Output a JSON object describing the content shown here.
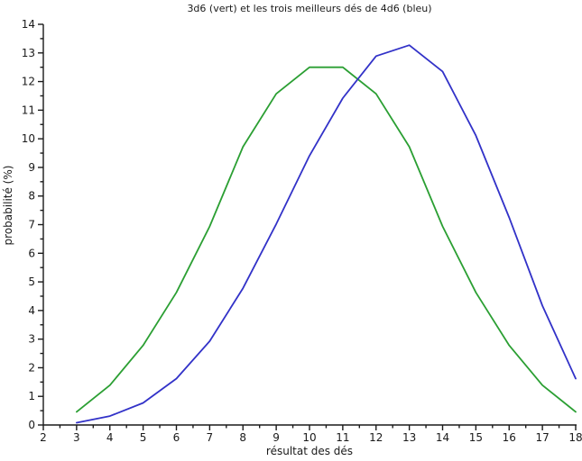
{
  "chart_data": {
    "type": "line",
    "title": "3d6 (vert) et les trois meilleurs dés de 4d6 (bleu)",
    "xlabel": "résultat des dés",
    "ylabel": "probabilité (%)",
    "xlim": [
      2,
      18
    ],
    "ylim": [
      0,
      14
    ],
    "x_ticks": [
      2,
      3,
      4,
      5,
      6,
      7,
      8,
      9,
      10,
      11,
      12,
      13,
      14,
      15,
      16,
      17,
      18
    ],
    "y_ticks": [
      0,
      1,
      2,
      3,
      4,
      5,
      6,
      7,
      8,
      9,
      10,
      11,
      12,
      13,
      14
    ],
    "minor_tick_step": 0.5,
    "grid": false,
    "legend_position": "none",
    "axis_color": "#1a1a1a",
    "x": [
      3,
      4,
      5,
      6,
      7,
      8,
      9,
      10,
      11,
      12,
      13,
      14,
      15,
      16,
      17,
      18
    ],
    "series": [
      {
        "id": "3d6",
        "name": "3d6 (vert)",
        "color": "#2b9f33",
        "values": [
          0.46,
          1.39,
          2.78,
          4.63,
          6.94,
          9.72,
          11.57,
          12.5,
          12.5,
          11.57,
          9.72,
          6.94,
          4.63,
          2.78,
          1.39,
          0.46
        ]
      },
      {
        "id": "best3of4d6",
        "name": "3 meilleurs dés de 4d6 (bleu)",
        "color": "#3232c8",
        "values": [
          0.08,
          0.31,
          0.77,
          1.62,
          2.93,
          4.78,
          7.02,
          9.41,
          11.42,
          12.89,
          13.27,
          12.35,
          10.11,
          7.25,
          4.17,
          1.62
        ]
      }
    ]
  }
}
